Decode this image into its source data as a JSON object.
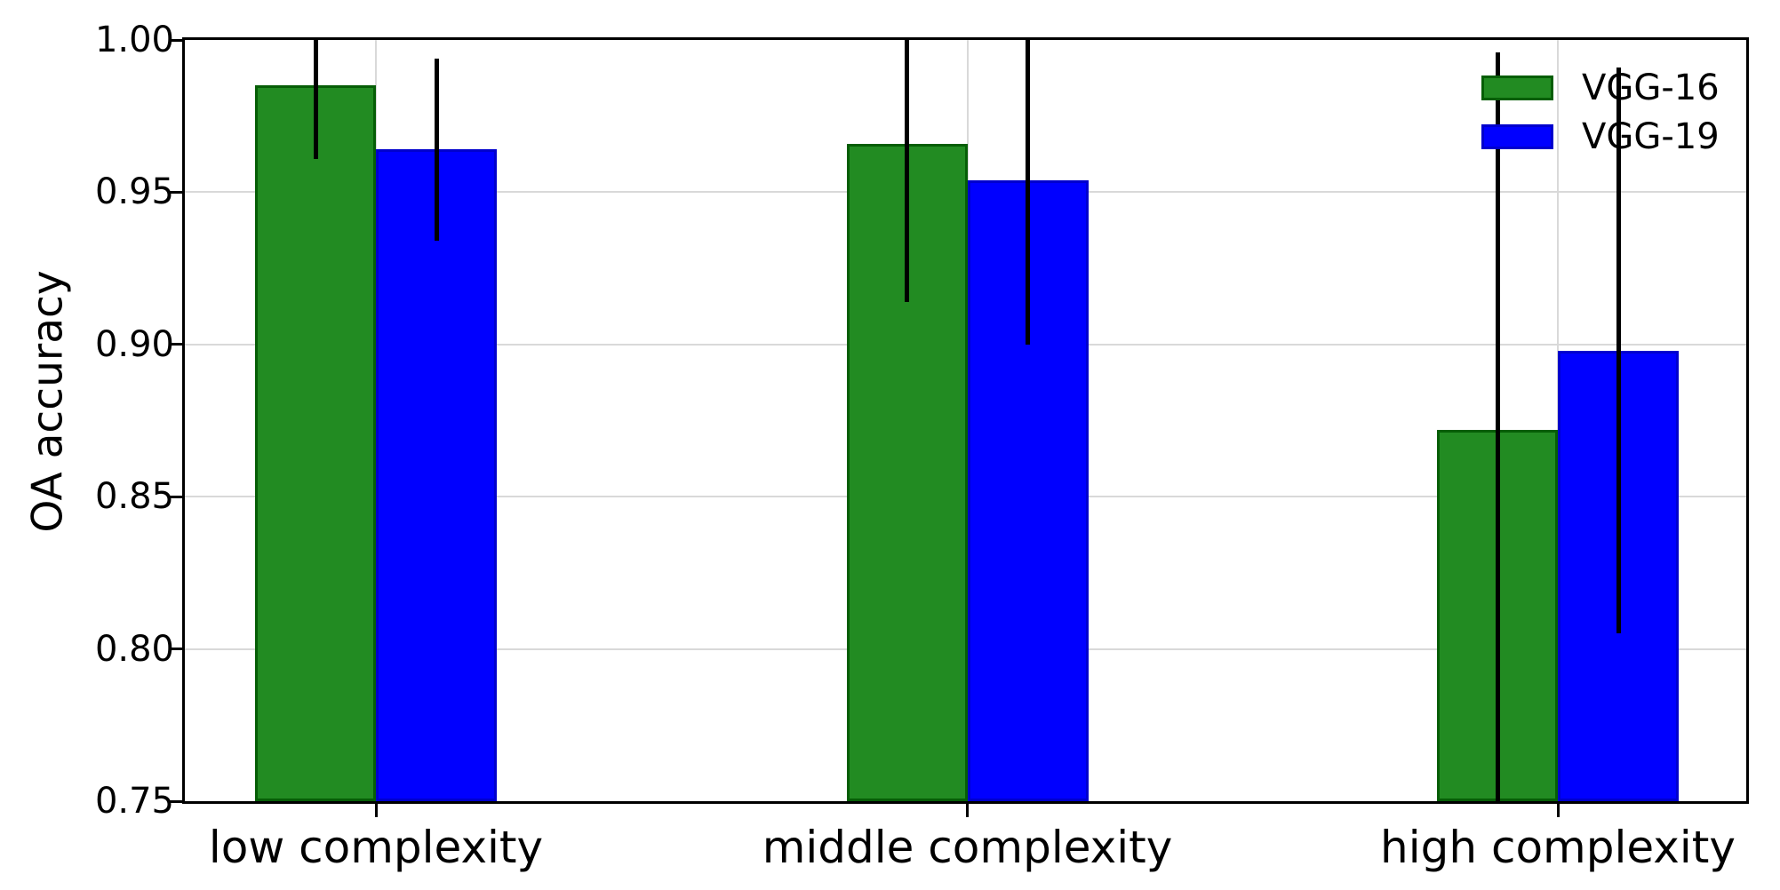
{
  "figure": {
    "background": "#ffffff"
  },
  "chart_data": {
    "type": "bar",
    "title": "",
    "xlabel": "",
    "ylabel": "OA accuracy",
    "categories": [
      "low complexity",
      "middle complexity",
      "high complexity"
    ],
    "series": [
      {
        "name": "VGG-16",
        "color": "#228b22",
        "edge_color": "#065e06",
        "values": [
          0.985,
          0.966,
          0.872
        ],
        "errors": [
          0.024,
          0.052,
          0.124
        ]
      },
      {
        "name": "VGG-19",
        "color": "#0000ff",
        "edge_color": "#0000cd",
        "values": [
          0.964,
          0.954,
          0.898
        ],
        "errors": [
          0.03,
          0.054,
          0.093
        ]
      }
    ],
    "ylim": [
      0.75,
      1.0
    ],
    "yticks": [
      {
        "value": 1.0,
        "label": "1.00"
      },
      {
        "value": 0.95,
        "label": "0.95"
      },
      {
        "value": 0.9,
        "label": "0.90"
      },
      {
        "value": 0.85,
        "label": "0.85"
      },
      {
        "value": 0.8,
        "label": "0.80"
      },
      {
        "value": 0.75,
        "label": "0.75"
      }
    ],
    "grid": true,
    "grid_color": "#d9d9d9",
    "error_color": "#000000",
    "legend_position": "upper right",
    "error_bars_clipped_to_axes": true
  }
}
